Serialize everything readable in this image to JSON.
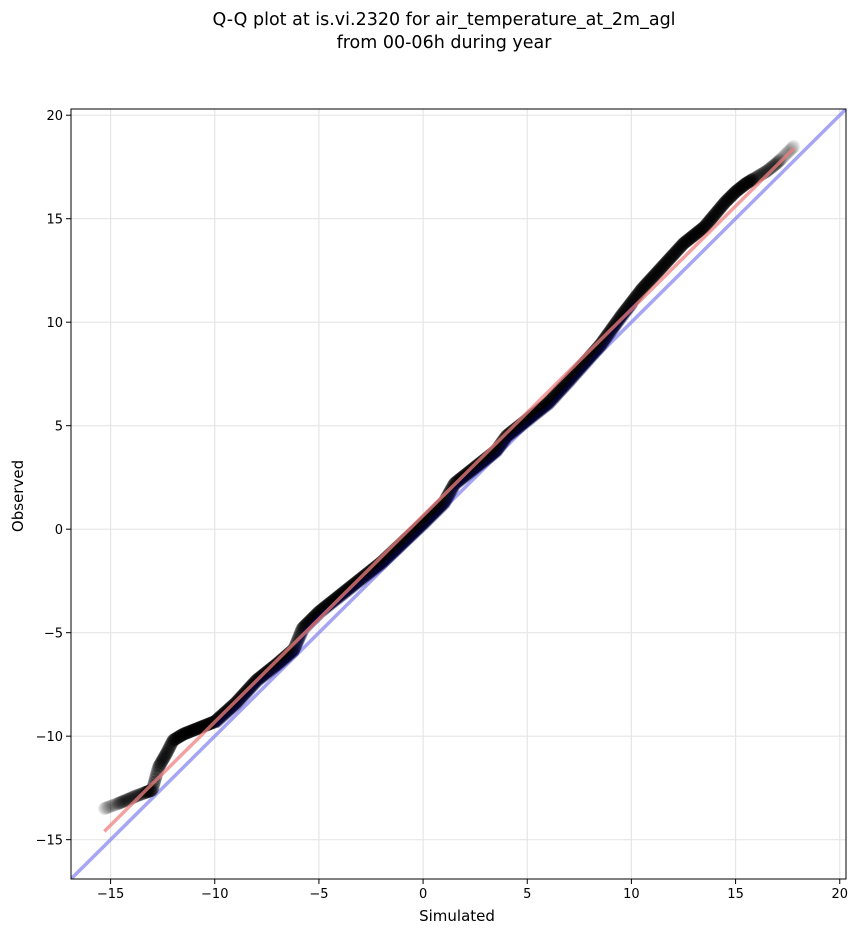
{
  "chart_data": {
    "type": "scatter",
    "title": "Q-Q plot at is.vi.2320 for air_temperature_at_2m_agl",
    "subtitle": "from 00-06h during year",
    "xlabel": "Simulated",
    "ylabel": "Observed",
    "xlim": [
      -16.9,
      20.3
    ],
    "ylim": [
      -16.9,
      20.3
    ],
    "x_ticks": [
      -15,
      -10,
      -5,
      0,
      5,
      10,
      15,
      20
    ],
    "y_ticks": [
      -15,
      -10,
      -5,
      0,
      5,
      10,
      15,
      20
    ],
    "x_tick_labels": [
      "−15",
      "−10",
      "−5",
      "0",
      "5",
      "10",
      "15",
      "20"
    ],
    "y_tick_labels": [
      "−15",
      "−10",
      "−5",
      "0",
      "5",
      "10",
      "15",
      "20"
    ],
    "grid": true,
    "colors": {
      "points": "#000000",
      "fit_line": "#f08080",
      "identity_line": "#8080f0",
      "band": "#00005a",
      "grid": "#e6e6e6"
    },
    "curve_anchors": [
      [
        -15.3,
        -13.5
      ],
      [
        -14.5,
        -13.2
      ],
      [
        -13.8,
        -12.9
      ],
      [
        -13.0,
        -12.6
      ],
      [
        -12.7,
        -11.5
      ],
      [
        -12.3,
        -10.8
      ],
      [
        -12.0,
        -10.2
      ],
      [
        -11.5,
        -9.9
      ],
      [
        -11.0,
        -9.7
      ],
      [
        -10.0,
        -9.3
      ],
      [
        -9.0,
        -8.4
      ],
      [
        -8.0,
        -7.3
      ],
      [
        -7.0,
        -6.5
      ],
      [
        -6.2,
        -5.8
      ],
      [
        -5.8,
        -4.8
      ],
      [
        -5.0,
        -4.0
      ],
      [
        -4.0,
        -3.2
      ],
      [
        -2.0,
        -1.6
      ],
      [
        0.0,
        0.3
      ],
      [
        1.0,
        1.3
      ],
      [
        1.5,
        2.2
      ],
      [
        2.5,
        3.0
      ],
      [
        3.5,
        3.8
      ],
      [
        4.0,
        4.5
      ],
      [
        6.0,
        6.1
      ],
      [
        7.0,
        7.2
      ],
      [
        8.5,
        8.9
      ],
      [
        9.5,
        10.3
      ],
      [
        10.5,
        11.6
      ],
      [
        11.5,
        12.7
      ],
      [
        12.5,
        13.8
      ],
      [
        13.5,
        14.6
      ],
      [
        14.5,
        15.8
      ],
      [
        15.0,
        16.3
      ],
      [
        15.5,
        16.7
      ],
      [
        16.0,
        17.0
      ],
      [
        16.5,
        17.3
      ],
      [
        17.0,
        17.7
      ],
      [
        17.8,
        18.5
      ]
    ],
    "n_points": 800,
    "fit_line": {
      "x_start": -15.3,
      "x_end": 17.8,
      "y_start": -14.6,
      "y_end": 18.4
    },
    "identity_line": {
      "slope": 1,
      "intercept": 0
    }
  }
}
